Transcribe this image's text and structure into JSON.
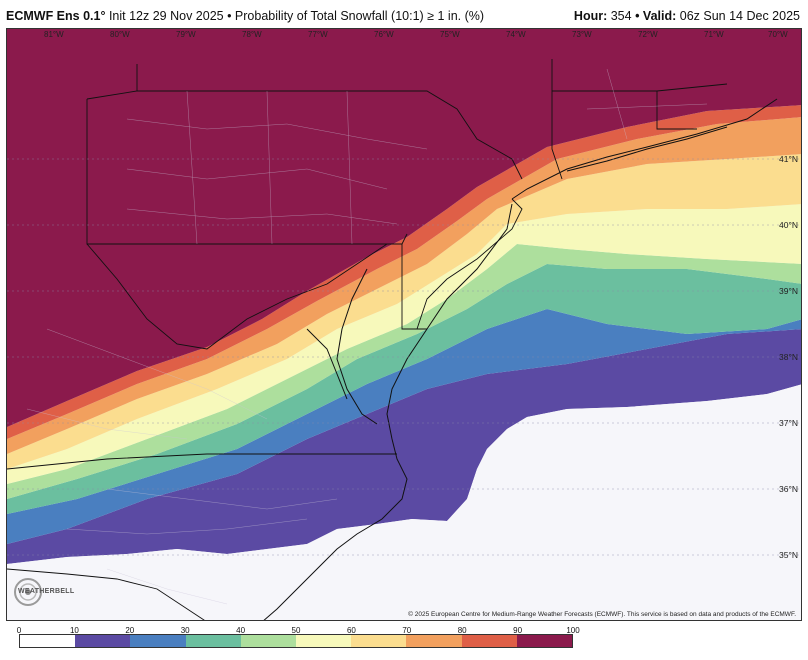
{
  "header": {
    "model": "ECMWF Ens 0.1°",
    "subtitle": "Init 12z 29 Nov 2025 • Probability of Total Snowfall (10:1) ≥ 1 in. (%)",
    "hour_label": "Hour:",
    "hour_value": "354",
    "valid_label": "• Valid:",
    "valid_value": "06z Sun 14 Dec 2025"
  },
  "map": {
    "longitude_labels": [
      "81°W",
      "80°W",
      "79°W",
      "78°W",
      "77°W",
      "76°W",
      "75°W",
      "74°W",
      "73°W",
      "72°W",
      "71°W",
      "70°W"
    ],
    "latitude_labels": [
      "41°N",
      "40°N",
      "39°N",
      "38°N",
      "37°N",
      "36°N",
      "35°N"
    ],
    "ocean_color": "#f2f4fb",
    "border_color": "#111111"
  },
  "logo": {
    "text": "WEATHERBELL",
    "icon": "weatherbell-logo-icon"
  },
  "copyright": "© 2025 European Centre for Medium-Range Weather Forecasts (ECMWF). This service is based on data and products of the ECMWF.",
  "legend": {
    "ticks": [
      "0",
      "10",
      "20",
      "30",
      "40",
      "50",
      "60",
      "70",
      "80",
      "90",
      "100"
    ],
    "colors": [
      "#ffffff",
      "#5b4aa3",
      "#4a7fc0",
      "#6bbf9f",
      "#addf9d",
      "#f7f9bb",
      "#fbdd8f",
      "#f2a05e",
      "#df5f47",
      "#8b1a4c"
    ]
  }
}
